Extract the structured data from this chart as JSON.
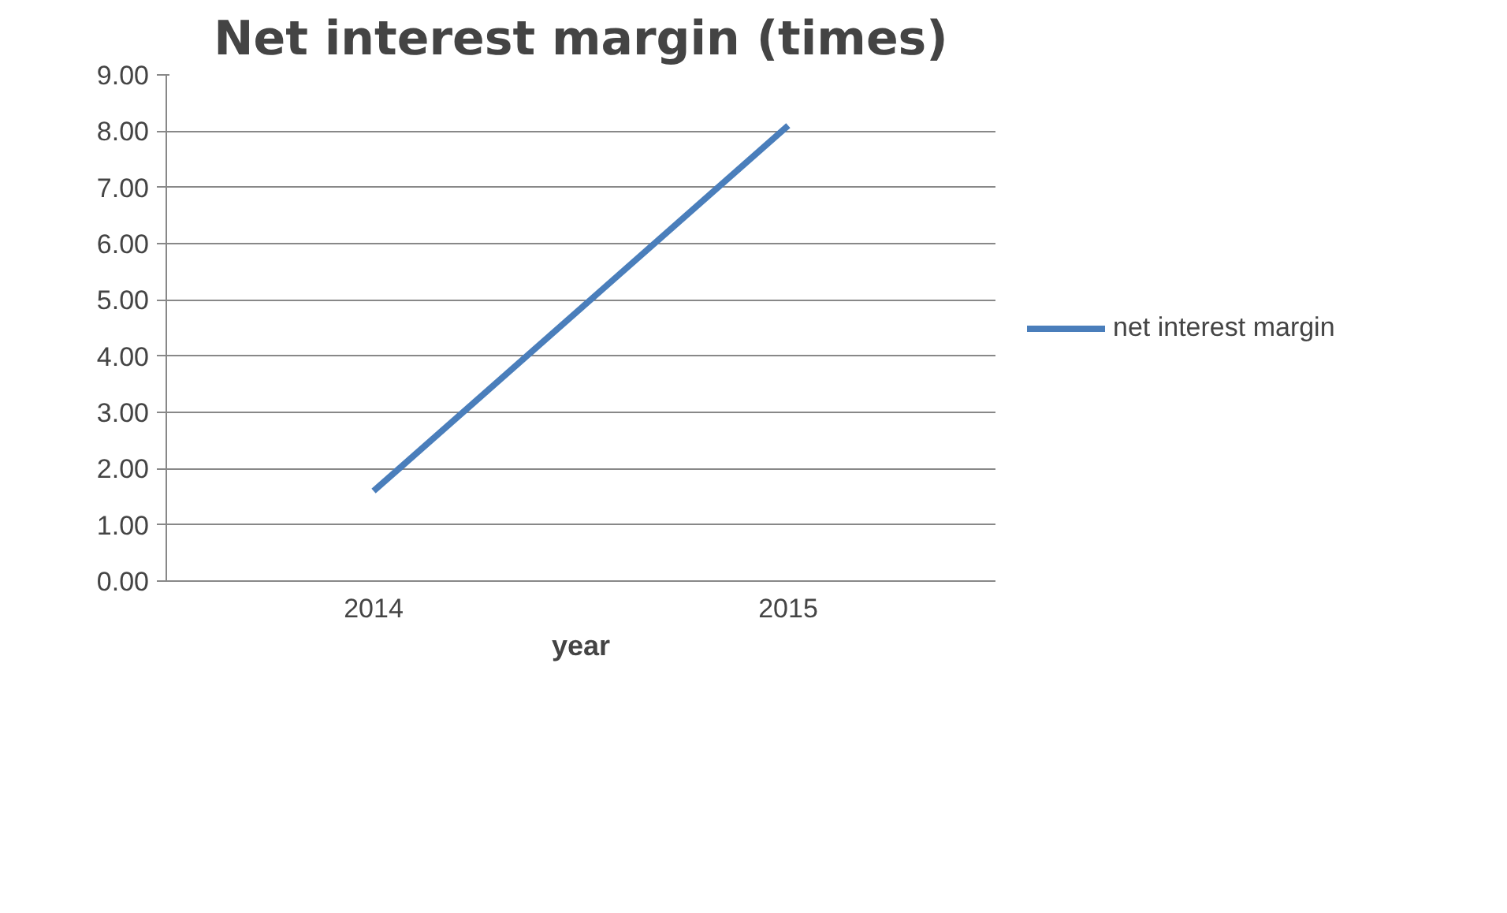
{
  "chart_data": {
    "type": "line",
    "title": "Net interest margin (times)",
    "xlabel": "year",
    "categories": [
      "2014",
      "2015"
    ],
    "series": [
      {
        "name": "net interest margin",
        "color": "#4a7ebb",
        "values": [
          1.6,
          8.1
        ]
      }
    ],
    "ylim": [
      0,
      9
    ],
    "yticks": [
      {
        "value": 0,
        "label": "0.00"
      },
      {
        "value": 1,
        "label": "1.00"
      },
      {
        "value": 2,
        "label": "2.00"
      },
      {
        "value": 3,
        "label": "3.00"
      },
      {
        "value": 4,
        "label": "4.00"
      },
      {
        "value": 5,
        "label": "5.00"
      },
      {
        "value": 6,
        "label": "6.00"
      },
      {
        "value": 7,
        "label": "7.00"
      },
      {
        "value": 8,
        "label": "8.00"
      },
      {
        "value": 9,
        "label": "9.00"
      }
    ],
    "grid": "y",
    "legend": "right",
    "marker": "none",
    "line_style": "solid"
  }
}
